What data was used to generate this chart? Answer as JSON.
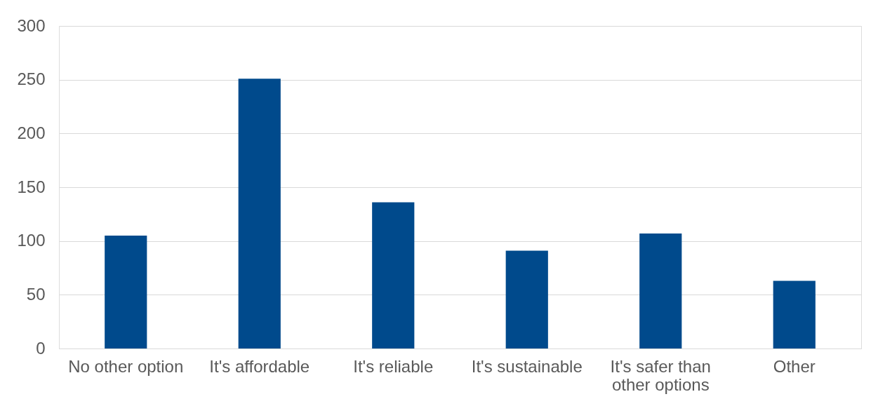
{
  "chart_data": {
    "type": "bar",
    "categories": [
      "No other option",
      "It's affordable",
      "It's reliable",
      "It's sustainable",
      "It's safer than other options",
      "Other"
    ],
    "values": [
      105,
      251,
      136,
      91,
      107,
      63
    ],
    "color": "#004a8c",
    "ylim": [
      0,
      300
    ],
    "yticks": [
      0,
      50,
      100,
      150,
      200,
      250,
      300
    ],
    "grid": "y"
  }
}
